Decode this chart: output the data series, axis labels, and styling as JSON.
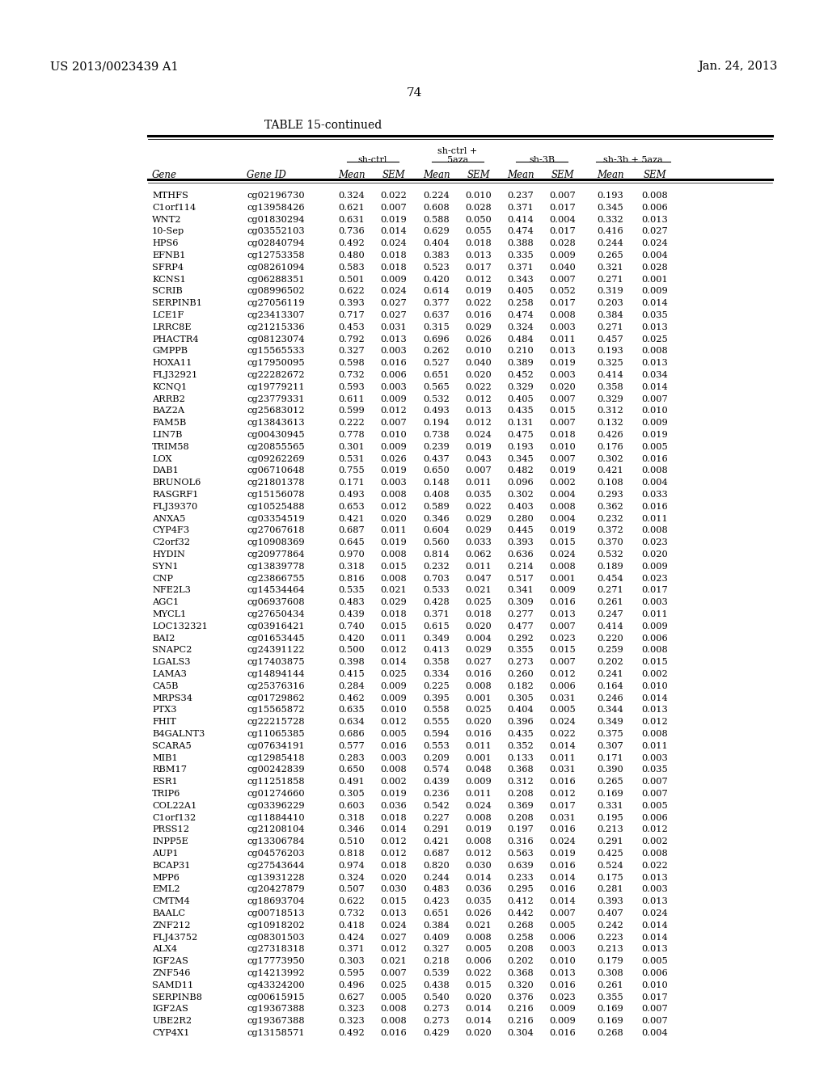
{
  "header_left": "US 2013/0023439 A1",
  "header_right": "Jan. 24, 2013",
  "page_number": "74",
  "table_title": "TABLE 15-continued",
  "rows": [
    [
      "MTHFS",
      "cg02196730",
      "0.324",
      "0.022",
      "0.224",
      "0.010",
      "0.237",
      "0.007",
      "0.193",
      "0.008"
    ],
    [
      "C1orf114",
      "cg13958426",
      "0.621",
      "0.007",
      "0.608",
      "0.028",
      "0.371",
      "0.017",
      "0.345",
      "0.006"
    ],
    [
      "WNT2",
      "cg01830294",
      "0.631",
      "0.019",
      "0.588",
      "0.050",
      "0.414",
      "0.004",
      "0.332",
      "0.013"
    ],
    [
      "10-Sep",
      "cg03552103",
      "0.736",
      "0.014",
      "0.629",
      "0.055",
      "0.474",
      "0.017",
      "0.416",
      "0.027"
    ],
    [
      "HPS6",
      "cg02840794",
      "0.492",
      "0.024",
      "0.404",
      "0.018",
      "0.388",
      "0.028",
      "0.244",
      "0.024"
    ],
    [
      "EFNB1",
      "cg12753358",
      "0.480",
      "0.018",
      "0.383",
      "0.013",
      "0.335",
      "0.009",
      "0.265",
      "0.004"
    ],
    [
      "SFRP4",
      "cg08261094",
      "0.583",
      "0.018",
      "0.523",
      "0.017",
      "0.371",
      "0.040",
      "0.321",
      "0.028"
    ],
    [
      "KCNS1",
      "cg06288351",
      "0.501",
      "0.009",
      "0.420",
      "0.012",
      "0.343",
      "0.007",
      "0.271",
      "0.001"
    ],
    [
      "SCRIB",
      "cg08996502",
      "0.622",
      "0.024",
      "0.614",
      "0.019",
      "0.405",
      "0.052",
      "0.319",
      "0.009"
    ],
    [
      "SERPINB1",
      "cg27056119",
      "0.393",
      "0.027",
      "0.377",
      "0.022",
      "0.258",
      "0.017",
      "0.203",
      "0.014"
    ],
    [
      "LCE1F",
      "cg23413307",
      "0.717",
      "0.027",
      "0.637",
      "0.016",
      "0.474",
      "0.008",
      "0.384",
      "0.035"
    ],
    [
      "LRRC8E",
      "cg21215336",
      "0.453",
      "0.031",
      "0.315",
      "0.029",
      "0.324",
      "0.003",
      "0.271",
      "0.013"
    ],
    [
      "PHACTR4",
      "cg08123074",
      "0.792",
      "0.013",
      "0.696",
      "0.026",
      "0.484",
      "0.011",
      "0.457",
      "0.025"
    ],
    [
      "GMPPB",
      "cg15565533",
      "0.327",
      "0.003",
      "0.262",
      "0.010",
      "0.210",
      "0.013",
      "0.193",
      "0.008"
    ],
    [
      "HOXA11",
      "cg17950095",
      "0.598",
      "0.016",
      "0.527",
      "0.040",
      "0.389",
      "0.019",
      "0.325",
      "0.013"
    ],
    [
      "FLJ32921",
      "cg22282672",
      "0.732",
      "0.006",
      "0.651",
      "0.020",
      "0.452",
      "0.003",
      "0.414",
      "0.034"
    ],
    [
      "KCNQ1",
      "cg19779211",
      "0.593",
      "0.003",
      "0.565",
      "0.022",
      "0.329",
      "0.020",
      "0.358",
      "0.014"
    ],
    [
      "ARRB2",
      "cg23779331",
      "0.611",
      "0.009",
      "0.532",
      "0.012",
      "0.405",
      "0.007",
      "0.329",
      "0.007"
    ],
    [
      "BAZ2A",
      "cg25683012",
      "0.599",
      "0.012",
      "0.493",
      "0.013",
      "0.435",
      "0.015",
      "0.312",
      "0.010"
    ],
    [
      "FAM5B",
      "cg13843613",
      "0.222",
      "0.007",
      "0.194",
      "0.012",
      "0.131",
      "0.007",
      "0.132",
      "0.009"
    ],
    [
      "LIN7B",
      "cg00430945",
      "0.778",
      "0.010",
      "0.738",
      "0.024",
      "0.475",
      "0.018",
      "0.426",
      "0.019"
    ],
    [
      "TRIM58",
      "cg20855565",
      "0.301",
      "0.009",
      "0.239",
      "0.019",
      "0.193",
      "0.010",
      "0.176",
      "0.005"
    ],
    [
      "LOX",
      "cg09262269",
      "0.531",
      "0.026",
      "0.437",
      "0.043",
      "0.345",
      "0.007",
      "0.302",
      "0.016"
    ],
    [
      "DAB1",
      "cg06710648",
      "0.755",
      "0.019",
      "0.650",
      "0.007",
      "0.482",
      "0.019",
      "0.421",
      "0.008"
    ],
    [
      "BRUNOL6",
      "cg21801378",
      "0.171",
      "0.003",
      "0.148",
      "0.011",
      "0.096",
      "0.002",
      "0.108",
      "0.004"
    ],
    [
      "RASGRF1",
      "cg15156078",
      "0.493",
      "0.008",
      "0.408",
      "0.035",
      "0.302",
      "0.004",
      "0.293",
      "0.033"
    ],
    [
      "FLJ39370",
      "cg10525488",
      "0.653",
      "0.012",
      "0.589",
      "0.022",
      "0.403",
      "0.008",
      "0.362",
      "0.016"
    ],
    [
      "ANXA5",
      "cg03354519",
      "0.421",
      "0.020",
      "0.346",
      "0.029",
      "0.280",
      "0.004",
      "0.232",
      "0.011"
    ],
    [
      "CYP4F3",
      "cg27067618",
      "0.687",
      "0.011",
      "0.604",
      "0.029",
      "0.445",
      "0.019",
      "0.372",
      "0.008"
    ],
    [
      "C2orf32",
      "cg10908369",
      "0.645",
      "0.019",
      "0.560",
      "0.033",
      "0.393",
      "0.015",
      "0.370",
      "0.023"
    ],
    [
      "HYDIN",
      "cg20977864",
      "0.970",
      "0.008",
      "0.814",
      "0.062",
      "0.636",
      "0.024",
      "0.532",
      "0.020"
    ],
    [
      "SYN1",
      "cg13839778",
      "0.318",
      "0.015",
      "0.232",
      "0.011",
      "0.214",
      "0.008",
      "0.189",
      "0.009"
    ],
    [
      "CNP",
      "cg23866755",
      "0.816",
      "0.008",
      "0.703",
      "0.047",
      "0.517",
      "0.001",
      "0.454",
      "0.023"
    ],
    [
      "NFE2L3",
      "cg14534464",
      "0.535",
      "0.021",
      "0.533",
      "0.021",
      "0.341",
      "0.009",
      "0.271",
      "0.017"
    ],
    [
      "AGC1",
      "cg06937608",
      "0.483",
      "0.029",
      "0.428",
      "0.025",
      "0.309",
      "0.016",
      "0.261",
      "0.003"
    ],
    [
      "MYCL1",
      "cg27650434",
      "0.439",
      "0.018",
      "0.371",
      "0.018",
      "0.277",
      "0.013",
      "0.247",
      "0.011"
    ],
    [
      "LOC132321",
      "cg03916421",
      "0.740",
      "0.015",
      "0.615",
      "0.020",
      "0.477",
      "0.007",
      "0.414",
      "0.009"
    ],
    [
      "BAI2",
      "cg01653445",
      "0.420",
      "0.011",
      "0.349",
      "0.004",
      "0.292",
      "0.023",
      "0.220",
      "0.006"
    ],
    [
      "SNAPC2",
      "cg24391122",
      "0.500",
      "0.012",
      "0.413",
      "0.029",
      "0.355",
      "0.015",
      "0.259",
      "0.008"
    ],
    [
      "LGALS3",
      "cg17403875",
      "0.398",
      "0.014",
      "0.358",
      "0.027",
      "0.273",
      "0.007",
      "0.202",
      "0.015"
    ],
    [
      "LAMA3",
      "cg14894144",
      "0.415",
      "0.025",
      "0.334",
      "0.016",
      "0.260",
      "0.012",
      "0.241",
      "0.002"
    ],
    [
      "CA5B",
      "cg25376316",
      "0.284",
      "0.009",
      "0.225",
      "0.008",
      "0.182",
      "0.006",
      "0.164",
      "0.010"
    ],
    [
      "MRPS34",
      "cg01729862",
      "0.462",
      "0.009",
      "0.395",
      "0.001",
      "0.305",
      "0.031",
      "0.246",
      "0.014"
    ],
    [
      "PTX3",
      "cg15565872",
      "0.635",
      "0.010",
      "0.558",
      "0.025",
      "0.404",
      "0.005",
      "0.344",
      "0.013"
    ],
    [
      "FHIT",
      "cg22215728",
      "0.634",
      "0.012",
      "0.555",
      "0.020",
      "0.396",
      "0.024",
      "0.349",
      "0.012"
    ],
    [
      "B4GALNT3",
      "cg11065385",
      "0.686",
      "0.005",
      "0.594",
      "0.016",
      "0.435",
      "0.022",
      "0.375",
      "0.008"
    ],
    [
      "SCARA5",
      "cg07634191",
      "0.577",
      "0.016",
      "0.553",
      "0.011",
      "0.352",
      "0.014",
      "0.307",
      "0.011"
    ],
    [
      "MIB1",
      "cg12985418",
      "0.283",
      "0.003",
      "0.209",
      "0.001",
      "0.133",
      "0.011",
      "0.171",
      "0.003"
    ],
    [
      "RBM17",
      "cg00242839",
      "0.650",
      "0.008",
      "0.574",
      "0.048",
      "0.368",
      "0.031",
      "0.390",
      "0.035"
    ],
    [
      "ESR1",
      "cg11251858",
      "0.491",
      "0.002",
      "0.439",
      "0.009",
      "0.312",
      "0.016",
      "0.265",
      "0.007"
    ],
    [
      "TRIP6",
      "cg01274660",
      "0.305",
      "0.019",
      "0.236",
      "0.011",
      "0.208",
      "0.012",
      "0.169",
      "0.007"
    ],
    [
      "COL22A1",
      "cg03396229",
      "0.603",
      "0.036",
      "0.542",
      "0.024",
      "0.369",
      "0.017",
      "0.331",
      "0.005"
    ],
    [
      "C1orf132",
      "cg11884410",
      "0.318",
      "0.018",
      "0.227",
      "0.008",
      "0.208",
      "0.031",
      "0.195",
      "0.006"
    ],
    [
      "PRSS12",
      "cg21208104",
      "0.346",
      "0.014",
      "0.291",
      "0.019",
      "0.197",
      "0.016",
      "0.213",
      "0.012"
    ],
    [
      "INPP5E",
      "cg13306784",
      "0.510",
      "0.012",
      "0.421",
      "0.008",
      "0.316",
      "0.024",
      "0.291",
      "0.002"
    ],
    [
      "AUP1",
      "cg04576203",
      "0.818",
      "0.012",
      "0.687",
      "0.012",
      "0.563",
      "0.019",
      "0.425",
      "0.008"
    ],
    [
      "BCAP31",
      "cg27543644",
      "0.974",
      "0.018",
      "0.820",
      "0.030",
      "0.639",
      "0.016",
      "0.524",
      "0.022"
    ],
    [
      "MPP6",
      "cg13931228",
      "0.324",
      "0.020",
      "0.244",
      "0.014",
      "0.233",
      "0.014",
      "0.175",
      "0.013"
    ],
    [
      "EML2",
      "cg20427879",
      "0.507",
      "0.030",
      "0.483",
      "0.036",
      "0.295",
      "0.016",
      "0.281",
      "0.003"
    ],
    [
      "CMTM4",
      "cg18693704",
      "0.622",
      "0.015",
      "0.423",
      "0.035",
      "0.412",
      "0.014",
      "0.393",
      "0.013"
    ],
    [
      "BAALC",
      "cg00718513",
      "0.732",
      "0.013",
      "0.651",
      "0.026",
      "0.442",
      "0.007",
      "0.407",
      "0.024"
    ],
    [
      "ZNF212",
      "cg10918202",
      "0.418",
      "0.024",
      "0.384",
      "0.021",
      "0.268",
      "0.005",
      "0.242",
      "0.014"
    ],
    [
      "FLJ43752",
      "cg08301503",
      "0.424",
      "0.027",
      "0.409",
      "0.008",
      "0.258",
      "0.006",
      "0.223",
      "0.014"
    ],
    [
      "ALX4",
      "cg27318318",
      "0.371",
      "0.012",
      "0.327",
      "0.005",
      "0.208",
      "0.003",
      "0.213",
      "0.013"
    ],
    [
      "IGF2AS",
      "cg17773950",
      "0.303",
      "0.021",
      "0.218",
      "0.006",
      "0.202",
      "0.010",
      "0.179",
      "0.005"
    ],
    [
      "ZNF546",
      "cg14213992",
      "0.595",
      "0.007",
      "0.539",
      "0.022",
      "0.368",
      "0.013",
      "0.308",
      "0.006"
    ],
    [
      "SAMD11",
      "cg43324200",
      "0.496",
      "0.025",
      "0.438",
      "0.015",
      "0.320",
      "0.016",
      "0.261",
      "0.010"
    ],
    [
      "SERPINB8",
      "cg00615915",
      "0.627",
      "0.005",
      "0.540",
      "0.020",
      "0.376",
      "0.023",
      "0.355",
      "0.017"
    ],
    [
      "IGF2AS",
      "cg19367388",
      "0.323",
      "0.008",
      "0.273",
      "0.014",
      "0.216",
      "0.009",
      "0.169",
      "0.007"
    ],
    [
      "UBE2R2",
      "cg19367388",
      "0.323",
      "0.008",
      "0.273",
      "0.014",
      "0.216",
      "0.009",
      "0.169",
      "0.007"
    ],
    [
      "CYP4X1",
      "cg13158571",
      "0.492",
      "0.016",
      "0.429",
      "0.020",
      "0.304",
      "0.016",
      "0.268",
      "0.004"
    ]
  ]
}
